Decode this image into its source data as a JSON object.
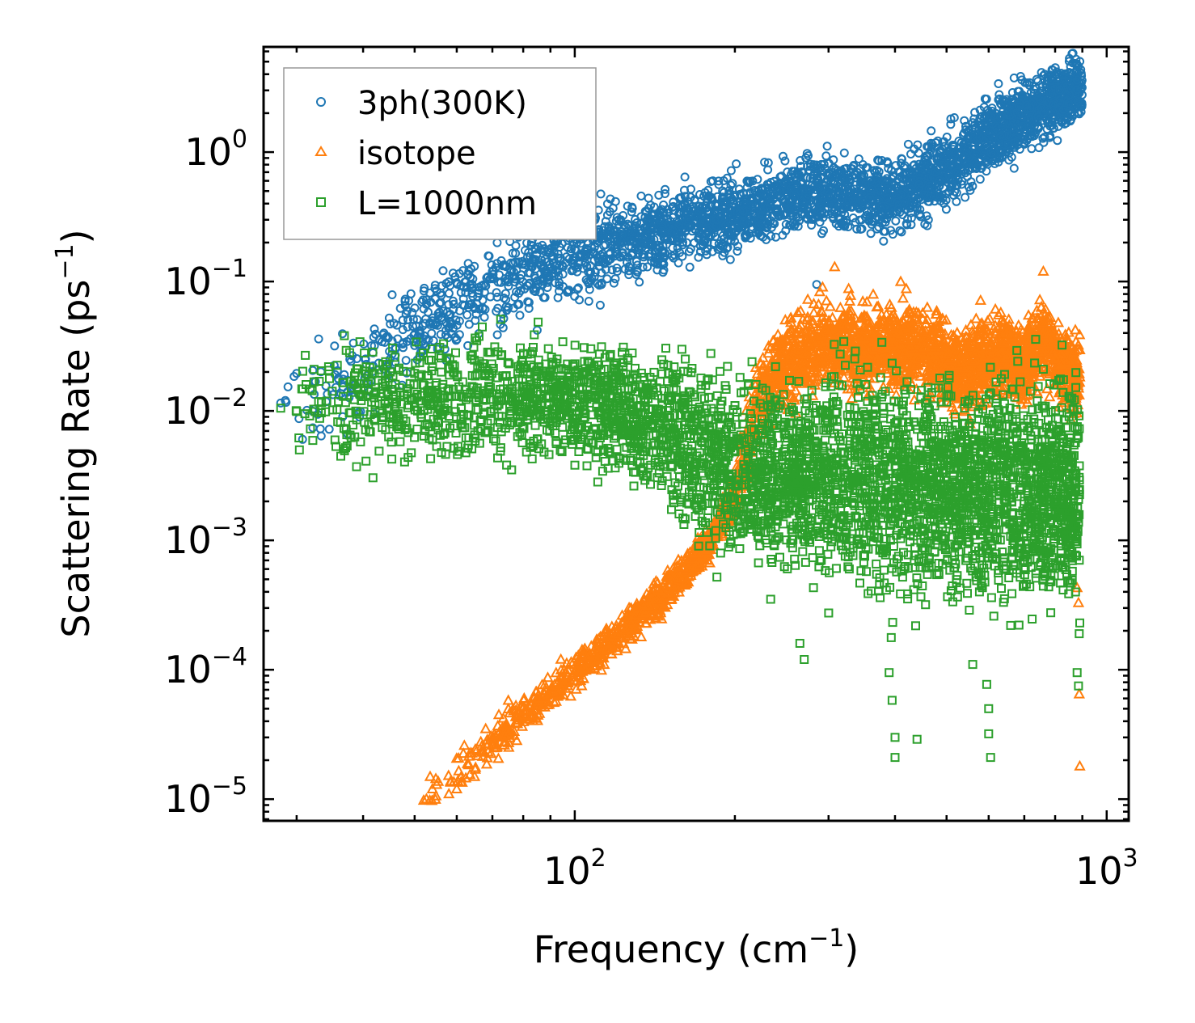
{
  "chart_data": {
    "type": "scatter",
    "title": "",
    "xscale": "log",
    "yscale": "log",
    "xlim": [
      26,
      1100
    ],
    "ylim": [
      6.8e-06,
      6.5
    ],
    "xlabel": {
      "text": "Frequency (cm",
      "sup": "−1",
      "close": ")"
    },
    "ylabel": {
      "text": "Scattering Rate (ps",
      "sup": "−1",
      "close": ")"
    },
    "x_ticks": [
      {
        "value": 100,
        "base": "10",
        "exp": "2"
      },
      {
        "value": 1000,
        "base": "10",
        "exp": "3"
      }
    ],
    "y_ticks": [
      {
        "value": 1,
        "base": "10",
        "exp": "0"
      },
      {
        "value": 0.1,
        "base": "10",
        "exp": "−1"
      },
      {
        "value": 0.01,
        "base": "10",
        "exp": "−2"
      },
      {
        "value": 0.001,
        "base": "10",
        "exp": "−3"
      },
      {
        "value": 0.0001,
        "base": "10",
        "exp": "−4"
      },
      {
        "value": 1e-05,
        "base": "10",
        "exp": "−5"
      }
    ],
    "legend_position": "top-left",
    "series": [
      {
        "name": "3ph(300K)",
        "marker": "circle",
        "color": "#1f77b4",
        "trend": [
          [
            28,
            0.012
          ],
          [
            40,
            0.018
          ],
          [
            50,
            0.045
          ],
          [
            60,
            0.065
          ],
          [
            80,
            0.12
          ],
          [
            100,
            0.16
          ],
          [
            150,
            0.25
          ],
          [
            200,
            0.33
          ],
          [
            250,
            0.45
          ],
          [
            300,
            0.48
          ],
          [
            400,
            0.45
          ],
          [
            500,
            0.72
          ],
          [
            600,
            1.35
          ],
          [
            700,
            2.0
          ],
          [
            800,
            2.6
          ],
          [
            900,
            3.1
          ]
        ],
        "scatter_log10": 0.13,
        "points": [
          [
            28,
            0.0115
          ],
          [
            30,
            0.0195
          ],
          [
            33,
            0.036
          ],
          [
            36,
            0.0175
          ],
          [
            38,
            0.0145
          ],
          [
            42,
            0.043
          ],
          [
            42,
            0.0095
          ],
          [
            45,
            0.047
          ],
          [
            46,
            0.027
          ],
          [
            47,
            0.062
          ],
          [
            48,
            0.073
          ],
          [
            50,
            0.032
          ],
          [
            53,
            0.058
          ],
          [
            56,
            0.039
          ],
          [
            57,
            0.03
          ],
          [
            58,
            0.055
          ],
          [
            60,
            0.098
          ],
          [
            62,
            0.065
          ],
          [
            65,
            0.05
          ],
          [
            70,
            0.108
          ],
          [
            75,
            0.063
          ],
          [
            80,
            0.138
          ],
          [
            85,
            0.042
          ],
          [
            90,
            0.128
          ],
          [
            93,
            0.075
          ],
          [
            97,
            0.085
          ],
          [
            102,
            0.072
          ],
          [
            110,
            0.21
          ],
          [
            115,
            0.105
          ],
          [
            130,
            0.27
          ],
          [
            285,
            0.095
          ],
          [
            460,
            0.27
          ],
          [
            540,
            1.75
          ],
          [
            550,
            0.9
          ],
          [
            670,
            0.75
          ],
          [
            880,
            3.6
          ]
        ]
      },
      {
        "name": "isotope",
        "marker": "triangle",
        "color": "#ff7f0e",
        "trend": [
          [
            52,
            1.05e-05
          ],
          [
            60,
            1.65e-05
          ],
          [
            70,
            2.7e-05
          ],
          [
            80,
            4.3e-05
          ],
          [
            90,
            6.5e-05
          ],
          [
            100,
            9.7e-05
          ],
          [
            120,
            0.00018
          ],
          [
            140,
            0.00032
          ],
          [
            160,
            0.00055
          ],
          [
            180,
            0.001
          ],
          [
            200,
            0.0022
          ],
          [
            220,
            0.011
          ],
          [
            240,
            0.022
          ],
          [
            280,
            0.032
          ],
          [
            320,
            0.034
          ],
          [
            360,
            0.03
          ],
          [
            400,
            0.033
          ],
          [
            450,
            0.03
          ],
          [
            500,
            0.024
          ],
          [
            550,
            0.02
          ],
          [
            600,
            0.027
          ],
          [
            650,
            0.026
          ],
          [
            700,
            0.022
          ],
          [
            760,
            0.038
          ],
          [
            800,
            0.025
          ],
          [
            850,
            0.02
          ],
          [
            890,
            0.018
          ]
        ],
        "scatter_log10": 0.12,
        "points": [
          [
            52,
            9.8e-06
          ],
          [
            54,
            1.2e-05
          ],
          [
            55,
            1.3e-05
          ],
          [
            58,
            1.1e-05
          ],
          [
            60,
            1.2e-05
          ],
          [
            62,
            2.6e-05
          ],
          [
            63,
            1.9e-05
          ],
          [
            65,
            1.7e-05
          ],
          [
            68,
            3.5e-05
          ],
          [
            72,
            4.5e-05
          ],
          [
            75,
            5.8e-05
          ],
          [
            308,
            0.13
          ],
          [
            330,
            0.078
          ],
          [
            410,
            0.1
          ],
          [
            420,
            0.088
          ],
          [
            760,
            0.12
          ],
          [
            880,
            0.00043
          ],
          [
            885,
            0.00033
          ],
          [
            888,
            6.5e-05
          ],
          [
            890,
            1.8e-05
          ]
        ]
      },
      {
        "name": "L=1000nm",
        "marker": "square",
        "color": "#2ca02c",
        "trend": [
          [
            28,
            0.0105
          ],
          [
            40,
            0.012
          ],
          [
            60,
            0.012
          ],
          [
            80,
            0.013
          ],
          [
            100,
            0.012
          ],
          [
            130,
            0.0095
          ],
          [
            160,
            0.0062
          ],
          [
            180,
            0.0045
          ],
          [
            200,
            0.0035
          ],
          [
            300,
            0.003
          ],
          [
            400,
            0.0028
          ],
          [
            500,
            0.0026
          ],
          [
            600,
            0.0025
          ],
          [
            700,
            0.0024
          ],
          [
            800,
            0.0023
          ],
          [
            890,
            0.0025
          ]
        ],
        "scatter_log10": 0.22,
        "points": [
          [
            28,
            0.0105
          ],
          [
            30,
            0.0099
          ],
          [
            33,
            0.0118
          ],
          [
            35,
            0.0142
          ],
          [
            38,
            0.015
          ],
          [
            42,
            0.0195
          ],
          [
            44,
            0.012
          ],
          [
            45,
            0.02
          ],
          [
            47,
            0.0138
          ],
          [
            50,
            0.0195
          ],
          [
            55,
            0.0138
          ],
          [
            58,
            0.0148
          ],
          [
            65,
            0.0186
          ],
          [
            68,
            0.0195
          ],
          [
            80,
            0.02
          ],
          [
            90,
            0.019
          ],
          [
            100,
            0.0198
          ],
          [
            120,
            0.0197
          ],
          [
            150,
            0.0195
          ],
          [
            164,
            0.003
          ],
          [
            185,
            0.00052
          ],
          [
            265,
            0.00016
          ],
          [
            270,
            0.00012
          ],
          [
            390,
            9.5e-05
          ],
          [
            395,
            5.8e-05
          ],
          [
            400,
            3e-05
          ],
          [
            400,
            2.1e-05
          ],
          [
            440,
            2.9e-05
          ],
          [
            560,
            0.00011
          ],
          [
            595,
            7.7e-05
          ],
          [
            600,
            5e-05
          ],
          [
            600,
            3.2e-05
          ],
          [
            605,
            2.1e-05
          ],
          [
            660,
            0.00022
          ],
          [
            760,
            0.021
          ],
          [
            880,
            9.5e-05
          ],
          [
            885,
            7.5e-05
          ],
          [
            888,
            0.00019
          ],
          [
            890,
            0.00023
          ]
        ]
      }
    ]
  }
}
